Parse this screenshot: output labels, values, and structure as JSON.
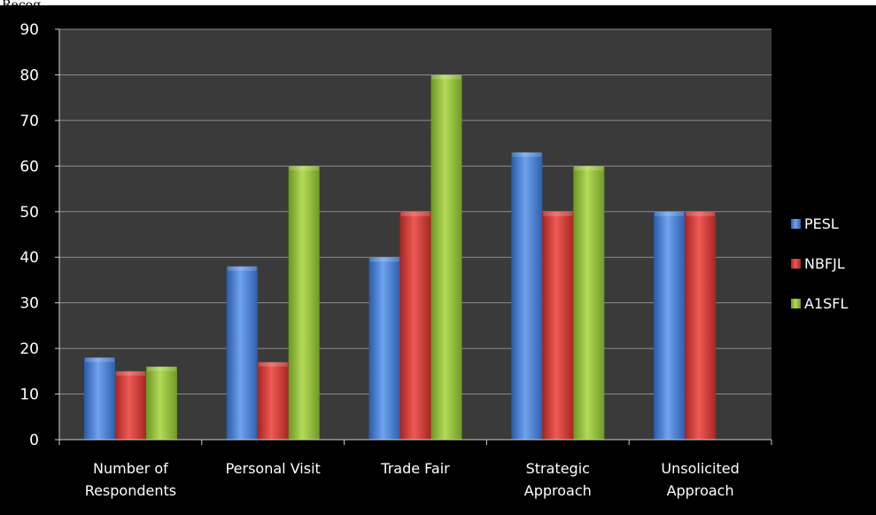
{
  "page": {
    "top_fragment": "Recog..."
  },
  "colors": {
    "background": "#000000",
    "plot_area": "#3a3a3a",
    "gridline": "#8c8c8c",
    "axis": "#d0d0d0",
    "text": "#ffffff",
    "PESL": "#4f86d9",
    "NBFJL": "#d9413c",
    "A1SFL": "#95c13a"
  },
  "chart_data": {
    "type": "bar",
    "categories": [
      [
        "Number of",
        "Respondents"
      ],
      [
        "Personal Visit"
      ],
      [
        "Trade Fair"
      ],
      [
        "Strategic",
        "Approach"
      ],
      [
        "Unsolicited",
        "Approach"
      ]
    ],
    "series": [
      {
        "name": "PESL",
        "values": [
          18,
          38,
          40,
          63,
          50
        ]
      },
      {
        "name": "NBFJL",
        "values": [
          15,
          17,
          50,
          50,
          50
        ]
      },
      {
        "name": "A1SFL",
        "values": [
          16,
          60,
          80,
          60,
          0
        ]
      }
    ],
    "yticks": [
      "0",
      "10",
      "20",
      "30",
      "40",
      "50",
      "60",
      "70",
      "80",
      "90"
    ],
    "ylim": [
      0,
      90
    ],
    "grid": true,
    "legend_position": "right",
    "title": "",
    "xlabel": "",
    "ylabel": ""
  }
}
